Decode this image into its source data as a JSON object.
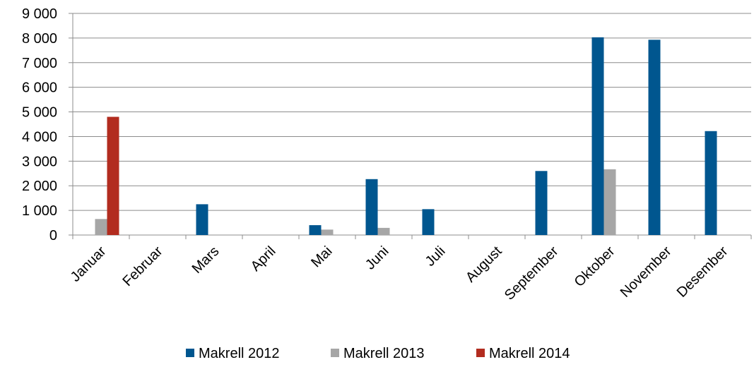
{
  "chart_data": {
    "type": "bar",
    "categories": [
      "Januar",
      "Februar",
      "Mars",
      "April",
      "Mai",
      "Juni",
      "Juli",
      "August",
      "September",
      "Oktober",
      "November",
      "Desember"
    ],
    "series": [
      {
        "name": "Makrell 2012",
        "color": "#00568f",
        "values": [
          null,
          null,
          1250,
          null,
          400,
          2270,
          1050,
          null,
          2600,
          8030,
          7930,
          4220
        ]
      },
      {
        "name": "Makrell 2013",
        "color": "#a6a6a6",
        "values": [
          650,
          null,
          null,
          null,
          220,
          290,
          null,
          null,
          null,
          2670,
          null,
          null
        ]
      },
      {
        "name": "Makrell 2014",
        "color": "#b22c1f",
        "values": [
          4800,
          null,
          null,
          null,
          null,
          null,
          null,
          null,
          null,
          null,
          null,
          null
        ]
      }
    ],
    "ylim": [
      0,
      9000
    ],
    "yticks": [
      0,
      {
        "value": 1000,
        "label": "1 000"
      },
      {
        "value": 2000,
        "label": "2 000"
      },
      {
        "value": 3000,
        "label": "3 000"
      },
      {
        "value": 4000,
        "label": "4 000"
      },
      {
        "value": 5000,
        "label": "5 000"
      },
      {
        "value": 6000,
        "label": "6 000"
      },
      {
        "value": 7000,
        "label": "7 000"
      },
      {
        "value": 8000,
        "label": "8 000"
      },
      {
        "value": 9000,
        "label": "9 000"
      }
    ],
    "grid": true,
    "legend": "bottom"
  }
}
